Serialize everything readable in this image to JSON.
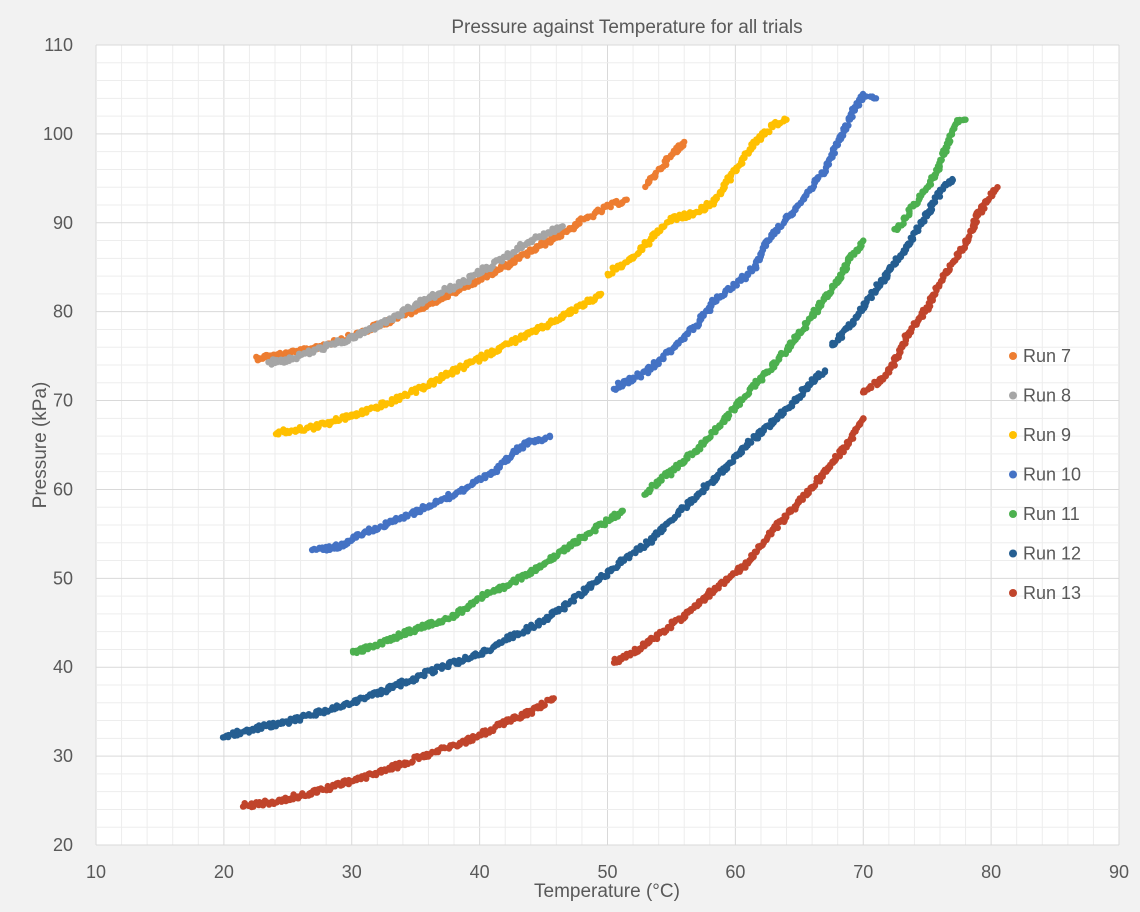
{
  "chart_data": {
    "type": "scatter",
    "title": "Pressure against Temperature for all trials",
    "xlabel": "Temperature (°C)",
    "ylabel": "Pressure (kPa)",
    "xlim": [
      10,
      90
    ],
    "ylim": [
      20,
      110
    ],
    "xticks": [
      10,
      20,
      30,
      40,
      50,
      60,
      70,
      80,
      90
    ],
    "yticks": [
      20,
      30,
      40,
      50,
      60,
      70,
      80,
      90,
      100,
      110
    ],
    "grid": "major and minor",
    "legend_position": "right",
    "series": [
      {
        "name": "Run 7",
        "color": "#ed7d31",
        "segments": [
          [
            [
              22.5,
              74.8
            ],
            [
              26,
              75.5
            ],
            [
              30,
              77.2
            ],
            [
              34,
              79.6
            ],
            [
              38,
              82.2
            ],
            [
              42,
              85.1
            ],
            [
              46,
              88.4
            ],
            [
              48,
              90.2
            ],
            [
              50,
              91.8
            ],
            [
              51.5,
              92.6
            ]
          ],
          [
            [
              53,
              94.2
            ],
            [
              54.5,
              96.8
            ],
            [
              56,
              99.1
            ]
          ]
        ]
      },
      {
        "name": "Run 8",
        "color": "#a5a5a5",
        "segments": [
          [
            [
              23.5,
              74.3
            ],
            [
              25,
              74.6
            ],
            [
              27,
              75.6
            ],
            [
              30,
              77.0
            ],
            [
              33,
              79.1
            ],
            [
              36,
              81.5
            ],
            [
              39,
              83.5
            ],
            [
              42,
              86.2
            ],
            [
              44,
              88.0
            ],
            [
              46.5,
              89.6
            ]
          ]
        ]
      },
      {
        "name": "Run 9",
        "color": "#ffc000",
        "segments": [
          [
            [
              24,
              66.3
            ],
            [
              27,
              67.0
            ],
            [
              30,
              68.3
            ],
            [
              33,
              69.8
            ],
            [
              36,
              71.8
            ],
            [
              39,
              74.0
            ],
            [
              42,
              76.2
            ],
            [
              45,
              78.3
            ],
            [
              47.5,
              80.3
            ],
            [
              49.5,
              82.0
            ]
          ],
          [
            [
              50,
              84.2
            ],
            [
              52,
              86.0
            ],
            [
              53.5,
              88.3
            ],
            [
              55,
              90.4
            ],
            [
              57,
              91.2
            ],
            [
              58.5,
              92.6
            ],
            [
              60,
              96.0
            ],
            [
              61.5,
              99.0
            ],
            [
              63,
              101.0
            ],
            [
              64,
              101.6
            ]
          ]
        ]
      },
      {
        "name": "Run 10",
        "color": "#4472c4",
        "segments": [
          [
            [
              27,
              53.2
            ],
            [
              29,
              53.6
            ],
            [
              31,
              55.2
            ],
            [
              33,
              56.2
            ],
            [
              35,
              57.5
            ],
            [
              37,
              58.8
            ],
            [
              39,
              60.2
            ],
            [
              41,
              61.8
            ],
            [
              42.5,
              64.0
            ],
            [
              44,
              65.5
            ],
            [
              45.5,
              65.9
            ]
          ],
          [
            [
              50.5,
              71.4
            ],
            [
              53,
              73.2
            ],
            [
              55,
              75.8
            ],
            [
              57,
              78.5
            ],
            [
              58.5,
              81.5
            ],
            [
              60,
              83.0
            ],
            [
              61.5,
              85.0
            ],
            [
              62.5,
              88.0
            ],
            [
              64,
              90.5
            ],
            [
              65.5,
              93.0
            ],
            [
              67,
              96.0
            ],
            [
              68,
              99.0
            ],
            [
              69,
              102.0
            ],
            [
              70,
              104.5
            ],
            [
              71,
              104.0
            ]
          ]
        ]
      },
      {
        "name": "Run 11",
        "color": "#4cb04f",
        "segments": [
          [
            [
              30,
              41.6
            ],
            [
              32,
              42.5
            ],
            [
              34,
              43.8
            ],
            [
              36,
              44.8
            ],
            [
              38,
              45.8
            ],
            [
              40,
              47.8
            ],
            [
              42,
              49.0
            ],
            [
              44,
              50.8
            ],
            [
              46,
              52.5
            ],
            [
              48,
              54.6
            ],
            [
              50,
              56.5
            ],
            [
              51.2,
              57.6
            ]
          ],
          [
            [
              53,
              59.6
            ],
            [
              55,
              62.0
            ],
            [
              57,
              64.5
            ],
            [
              59,
              67.5
            ],
            [
              61,
              71.0
            ],
            [
              63,
              74.0
            ],
            [
              65,
              77.5
            ],
            [
              66.5,
              80.5
            ],
            [
              68,
              83.5
            ],
            [
              69,
              86.0
            ],
            [
              70,
              88.0
            ]
          ],
          [
            [
              72.5,
              89.0
            ],
            [
              74,
              92.0
            ],
            [
              75.5,
              95.0
            ],
            [
              76.5,
              98.5
            ],
            [
              77.2,
              101.3
            ],
            [
              78,
              101.6
            ]
          ]
        ]
      },
      {
        "name": "Run 12",
        "color": "#255e91",
        "segments": [
          [
            [
              20,
              32.3
            ],
            [
              22.5,
              33.1
            ],
            [
              25,
              33.9
            ],
            [
              28,
              35.1
            ],
            [
              31,
              36.5
            ],
            [
              34,
              38.2
            ],
            [
              37,
              40.0
            ],
            [
              40,
              41.5
            ],
            [
              43,
              43.8
            ],
            [
              45,
              45.2
            ],
            [
              47,
              47.2
            ],
            [
              49,
              49.5
            ],
            [
              51,
              51.8
            ],
            [
              53,
              53.8
            ],
            [
              55,
              56.5
            ],
            [
              57,
              59.3
            ],
            [
              59,
              62.0
            ],
            [
              61,
              65.2
            ],
            [
              63,
              67.6
            ],
            [
              65,
              70.5
            ],
            [
              66,
              72.2
            ],
            [
              67,
              73.2
            ]
          ],
          [
            [
              67.5,
              76.2
            ],
            [
              69,
              78.5
            ],
            [
              70.5,
              81.5
            ],
            [
              72,
              84.5
            ],
            [
              73.5,
              87.5
            ],
            [
              75,
              91.0
            ],
            [
              76,
              93.5
            ],
            [
              77,
              94.8
            ]
          ]
        ]
      },
      {
        "name": "Run 13",
        "color": "#c0442b",
        "segments": [
          [
            [
              21.5,
              24.4
            ],
            [
              24,
              24.9
            ],
            [
              27,
              25.9
            ],
            [
              30,
              27.2
            ],
            [
              33,
              28.6
            ],
            [
              36,
              30.2
            ],
            [
              39,
              31.7
            ],
            [
              42,
              33.8
            ],
            [
              44,
              35.0
            ],
            [
              45.8,
              36.5
            ]
          ],
          [
            [
              50.5,
              40.6
            ],
            [
              53,
              42.5
            ],
            [
              56,
              45.8
            ],
            [
              59,
              49.5
            ],
            [
              61,
              51.8
            ],
            [
              63,
              55.5
            ],
            [
              65,
              58.5
            ],
            [
              67,
              62.0
            ],
            [
              69,
              65.5
            ],
            [
              70,
              68.0
            ]
          ],
          [
            [
              70,
              71.0
            ],
            [
              71.5,
              72.5
            ],
            [
              72.5,
              74.5
            ],
            [
              73.5,
              77.5
            ],
            [
              75,
              80.5
            ],
            [
              76.5,
              84.5
            ],
            [
              78,
              87.5
            ],
            [
              79,
              91.0
            ],
            [
              80.5,
              94.0
            ]
          ]
        ]
      }
    ]
  }
}
